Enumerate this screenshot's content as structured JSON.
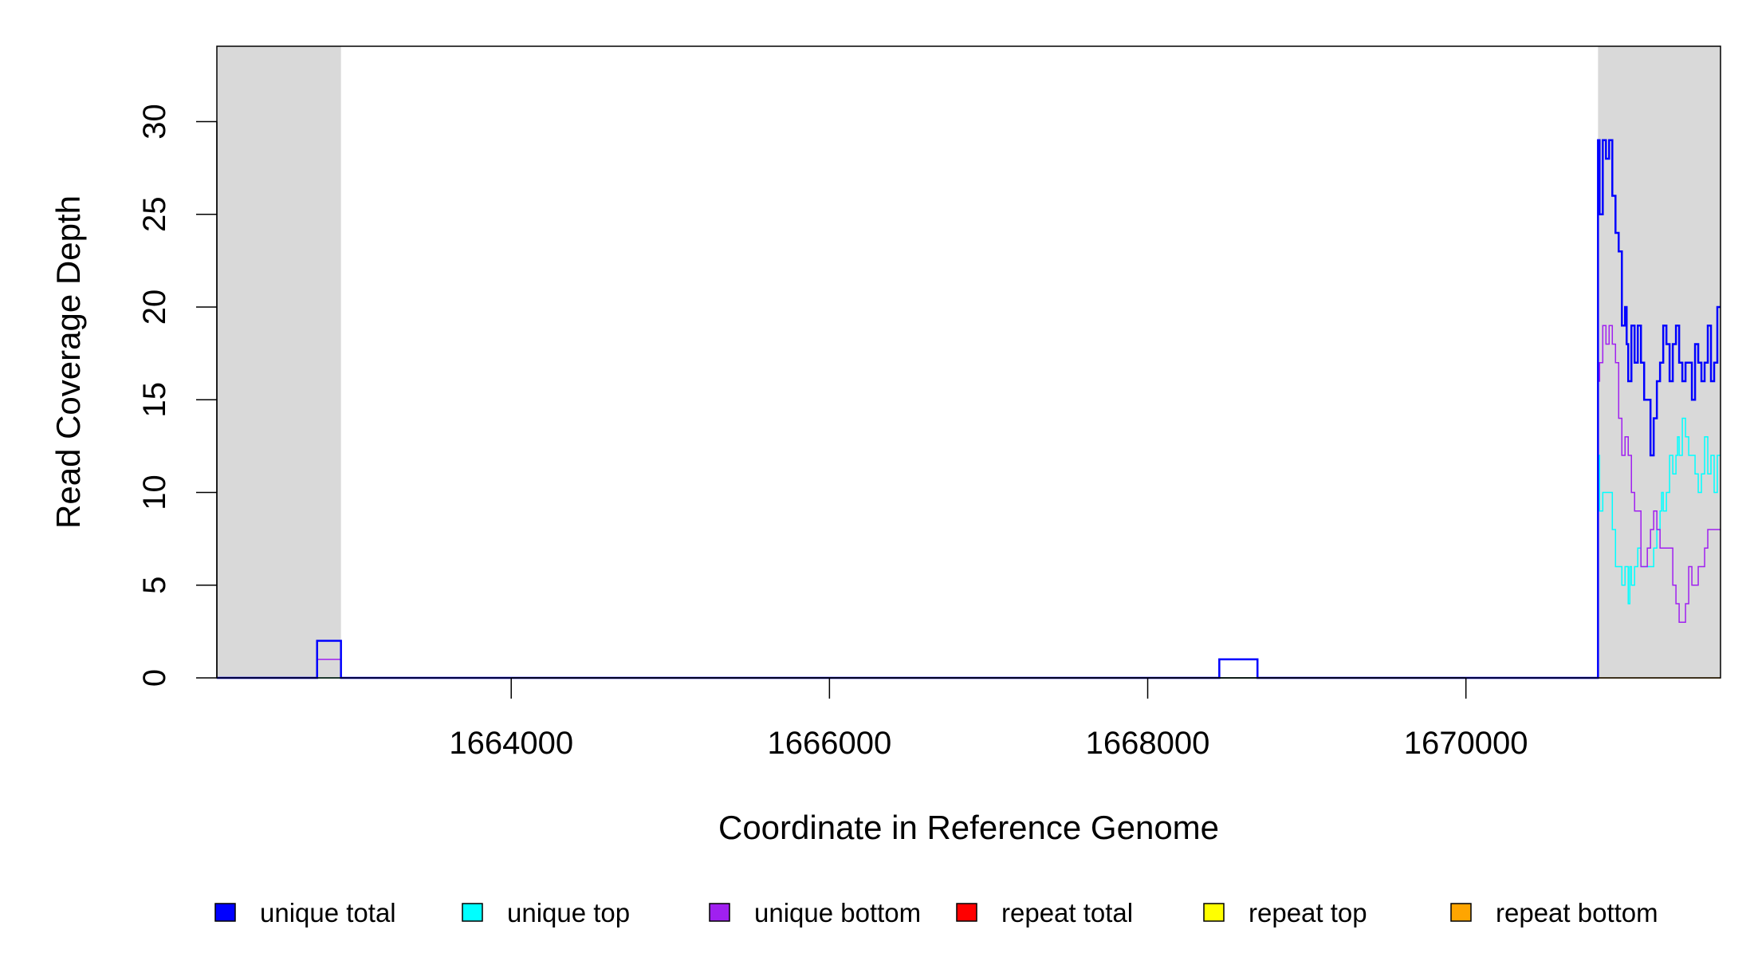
{
  "chart_data": {
    "type": "line",
    "step": true,
    "xlabel": "Coordinate in Reference Genome",
    "ylabel": "Read Coverage Depth",
    "xlim": [
      1662150,
      1671600
    ],
    "ylim": [
      0,
      34
    ],
    "x_ticks": [
      1664000,
      1666000,
      1668000,
      1670000
    ],
    "x_tick_labels": [
      "1664000",
      "1666000",
      "1668000",
      "1670000"
    ],
    "y_ticks": [
      0,
      5,
      10,
      15,
      20,
      25,
      30
    ],
    "y_tick_labels": [
      "0",
      "5",
      "10",
      "15",
      "20",
      "25",
      "30"
    ],
    "grid": false,
    "legend_position": "bottom",
    "shaded_regions": [
      {
        "from": 1662150,
        "to": 1662930,
        "color": "#d9d9d9"
      },
      {
        "from": 1670830,
        "to": 1671600,
        "color": "#d9d9d9"
      }
    ],
    "legend": [
      {
        "name": "unique total",
        "color": "#0000ff"
      },
      {
        "name": "unique top",
        "color": "#00ffff"
      },
      {
        "name": "unique bottom",
        "color": "#a020f0"
      },
      {
        "name": "repeat total",
        "color": "#ff0000"
      },
      {
        "name": "repeat top",
        "color": "#ffff00"
      },
      {
        "name": "repeat bottom",
        "color": "#ffa500"
      }
    ],
    "series": [
      {
        "name": "repeat bottom",
        "color": "#ffa500",
        "width": 1.5,
        "x": [
          1662150,
          1671600
        ],
        "y": [
          0,
          0
        ]
      },
      {
        "name": "unique top",
        "color": "#00ffff",
        "width": 1.5,
        "x": [
          1662150,
          1670830,
          1670840,
          1670860,
          1670880,
          1670920,
          1670940,
          1670960,
          1670980,
          1671000,
          1671020,
          1671030,
          1671040,
          1671060,
          1671080,
          1671100,
          1671120,
          1671140,
          1671160,
          1671180,
          1671200,
          1671220,
          1671230,
          1671240,
          1671260,
          1671280,
          1671300,
          1671320,
          1671330,
          1671340,
          1671360,
          1671380,
          1671400,
          1671420,
          1671440,
          1671460,
          1671480,
          1671500,
          1671520,
          1671540,
          1671560,
          1671580,
          1671600
        ],
        "y": [
          0,
          12,
          9,
          10,
          10,
          8,
          6,
          6,
          5,
          6,
          4,
          6,
          5,
          6,
          7,
          6,
          6,
          6,
          6,
          7,
          8,
          9,
          10,
          9,
          10,
          12,
          11,
          12,
          13,
          12,
          14,
          13,
          12,
          12,
          11,
          10,
          11,
          13,
          11,
          12,
          10,
          12,
          12
        ]
      },
      {
        "name": "unique bottom",
        "color": "#a020f0",
        "width": 1.5,
        "x": [
          1662150,
          1662780,
          1662930,
          1668450,
          1668690,
          1670830,
          1670840,
          1670860,
          1670880,
          1670900,
          1670920,
          1670940,
          1670960,
          1670980,
          1671000,
          1671020,
          1671040,
          1671060,
          1671080,
          1671100,
          1671120,
          1671140,
          1671160,
          1671180,
          1671200,
          1671220,
          1671240,
          1671260,
          1671280,
          1671300,
          1671320,
          1671340,
          1671360,
          1671380,
          1671400,
          1671420,
          1671440,
          1671460,
          1671480,
          1671500,
          1671520,
          1671540,
          1671560,
          1671580,
          1671600
        ],
        "y": [
          0,
          1,
          0,
          1,
          0,
          16,
          17,
          19,
          18,
          19,
          18,
          17,
          14,
          12,
          13,
          12,
          10,
          9,
          9,
          6,
          6,
          7,
          8,
          9,
          8,
          7,
          7,
          7,
          7,
          5,
          4,
          3,
          3,
          4,
          6,
          5,
          5,
          6,
          6,
          7,
          8,
          8,
          8,
          8,
          8
        ]
      },
      {
        "name": "unique total",
        "color": "#0000ff",
        "width": 2.5,
        "x": [
          1662150,
          1662780,
          1662930,
          1668450,
          1668690,
          1670830,
          1670840,
          1670860,
          1670880,
          1670900,
          1670920,
          1670940,
          1670960,
          1670980,
          1671000,
          1671010,
          1671020,
          1671040,
          1671060,
          1671080,
          1671100,
          1671120,
          1671140,
          1671160,
          1671180,
          1671200,
          1671220,
          1671240,
          1671260,
          1671280,
          1671300,
          1671320,
          1671340,
          1671360,
          1671380,
          1671400,
          1671420,
          1671440,
          1671460,
          1671480,
          1671500,
          1671520,
          1671540,
          1671560,
          1671580,
          1671600
        ],
        "y": [
          0,
          2,
          0,
          1,
          0,
          29,
          25,
          29,
          28,
          29,
          26,
          24,
          23,
          19,
          20,
          18,
          16,
          19,
          17,
          19,
          17,
          15,
          15,
          12,
          14,
          16,
          17,
          19,
          18,
          16,
          18,
          19,
          17,
          16,
          17,
          17,
          15,
          18,
          17,
          16,
          17,
          19,
          16,
          17,
          20,
          20
        ]
      }
    ]
  }
}
